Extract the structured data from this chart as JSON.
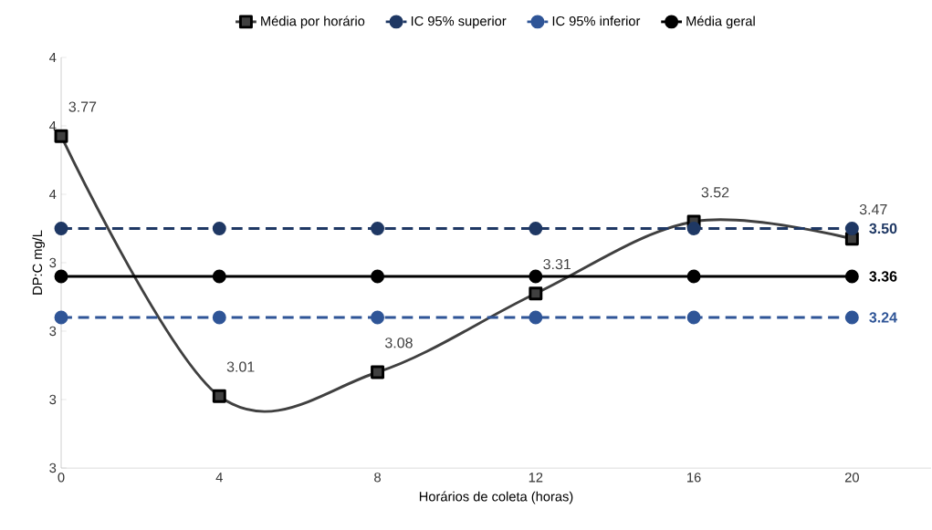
{
  "chart_data": {
    "type": "line",
    "xlabel": "Horários de coleta (horas)",
    "ylabel": "DP:C mg/L",
    "x": [
      0,
      4,
      8,
      12,
      16,
      20
    ],
    "series": [
      {
        "name": "Média por horário",
        "color": "#404040",
        "marker": "square",
        "line_style": "solid",
        "values": [
          3.77,
          3.01,
          3.08,
          3.31,
          3.52,
          3.47
        ],
        "value_labels": [
          "3.77",
          "3.01",
          "3.08",
          "3.31",
          "3.52",
          "3.47"
        ]
      },
      {
        "name": "IC 95% superior",
        "color": "#1f3864",
        "marker": "circle",
        "line_style": "dashed",
        "values": [
          3.5,
          3.5,
          3.5,
          3.5,
          3.5,
          3.5
        ],
        "value_labels": [
          null,
          null,
          null,
          null,
          null,
          "**3.50**"
        ]
      },
      {
        "name": "IC 95% inferior",
        "color": "#2f5597",
        "marker": "circle",
        "line_style": "dashed",
        "values": [
          3.24,
          3.24,
          3.24,
          3.24,
          3.24,
          3.24
        ],
        "value_labels": [
          null,
          null,
          null,
          null,
          null,
          "**3.24**"
        ]
      },
      {
        "name": "Média geral",
        "color": "#000000",
        "marker": "circle",
        "line_style": "solid",
        "values": [
          3.36,
          3.36,
          3.36,
          3.36,
          3.36,
          3.36
        ],
        "value_labels": [
          null,
          null,
          null,
          null,
          null,
          "**3.36**"
        ]
      }
    ],
    "xlim": [
      0,
      22
    ],
    "xticks": [
      0,
      4,
      8,
      12,
      16,
      20
    ],
    "ylim": [
      2.8,
      4.0
    ],
    "yticks": [
      {
        "value": 2.8,
        "label": "3"
      },
      {
        "value": 3.0,
        "label": "3"
      },
      {
        "value": 3.2,
        "label": "3"
      },
      {
        "value": 3.4,
        "label": "3"
      },
      {
        "value": 3.6,
        "label": "4"
      },
      {
        "value": 3.8,
        "label": "4"
      },
      {
        "value": 4.0,
        "label": "4"
      }
    ],
    "grid": false,
    "legend": "top"
  }
}
